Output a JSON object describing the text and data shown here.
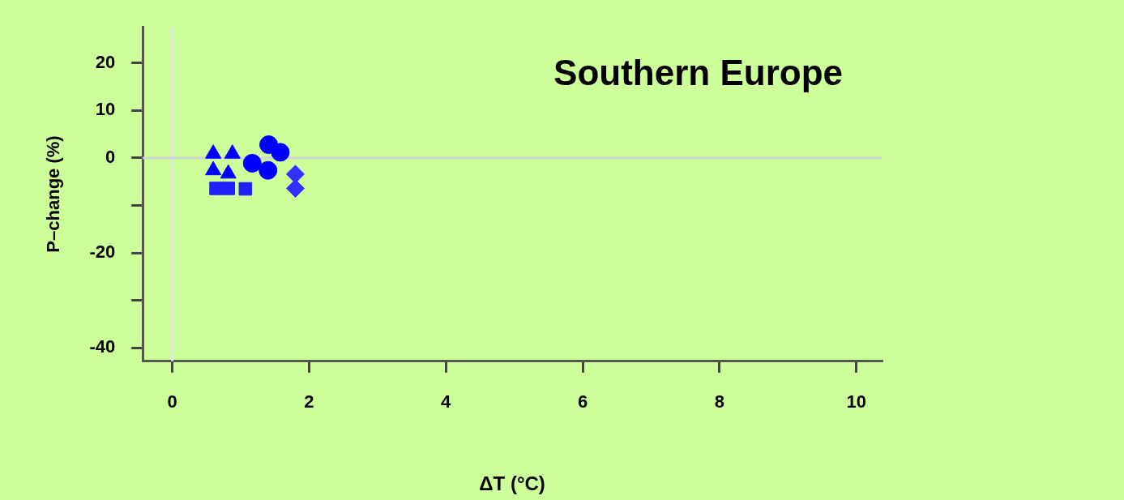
{
  "chart_data": {
    "type": "scatter",
    "title": "Southern Europe",
    "xlabel": "ΔT (°C)",
    "ylabel": "P–change (%)",
    "xlim": [
      -0.43,
      10.37
    ],
    "xticks": [
      0,
      2,
      4,
      6,
      8,
      10
    ],
    "ylim": [
      -42.8,
      27.6
    ],
    "yticks": [
      20,
      10,
      0,
      {
        "value": -10,
        "label": null
      },
      -20,
      {
        "value": -30,
        "label": null
      },
      -40
    ],
    "ref_lines": [
      {
        "axis": "x",
        "value": 0,
        "color": "#e4e4e4"
      },
      {
        "axis": "y",
        "value": 0,
        "color": "#d4d4d4"
      }
    ],
    "series": [
      {
        "marker": "triangle",
        "color": "#0000ff",
        "x": [
          0.6,
          0.6,
          0.88,
          0.82
        ],
        "values": [
          0.9,
          -2.6,
          0.9,
          -3.3
        ]
      },
      {
        "marker": "square",
        "color": "#2020ff",
        "x": [
          0.64,
          0.82,
          1.07
        ],
        "values": [
          -6.4,
          -6.4,
          -6.5
        ]
      },
      {
        "marker": "circle",
        "color": "#0000ff",
        "x": [
          1.41,
          1.17,
          1.4,
          1.58
        ],
        "values": [
          2.8,
          -1.1,
          -2.6,
          1.2
        ]
      },
      {
        "marker": "diamond",
        "color": "#3030ff",
        "x": [
          1.8,
          1.8
        ],
        "values": [
          -3.4,
          -6.4
        ]
      }
    ]
  }
}
